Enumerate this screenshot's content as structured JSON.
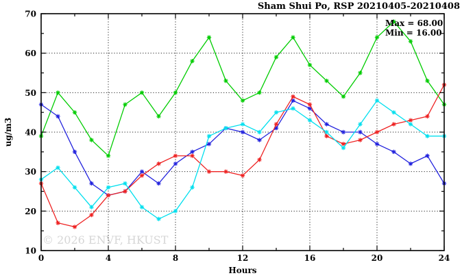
{
  "title": "Sham Shui Po, RSP 20210405-20210408",
  "annotations": {
    "max_label": "Max = 68.00",
    "min_label": "Min = 16.00"
  },
  "watermark": "© 2026 ENVF, HKUST",
  "colors": {
    "green": "#00cc00",
    "blue": "#2222dd",
    "red": "#ee2222",
    "cyan": "#00dfee",
    "grid": "#222222",
    "border": "#000000"
  },
  "chart_data": {
    "type": "line",
    "title": "Sham Shui Po, RSP 20210405-20210408",
    "xlabel": "Hours",
    "ylabel": "ug/m3",
    "xlim": [
      0,
      24
    ],
    "ylim": [
      10,
      70
    ],
    "x_major_ticks": [
      0,
      4,
      8,
      12,
      16,
      20,
      24
    ],
    "y_major_ticks": [
      10,
      20,
      30,
      40,
      50,
      60,
      70
    ],
    "x_minor_step": 2,
    "y_minor_step": 5,
    "grid": true,
    "legend": "none",
    "max": 68.0,
    "min": 16.0,
    "x": [
      0,
      1,
      2,
      3,
      4,
      5,
      6,
      7,
      8,
      9,
      10,
      11,
      12,
      13,
      14,
      15,
      16,
      17,
      18,
      19,
      20,
      21,
      22,
      23,
      24
    ],
    "series": [
      {
        "name": "green",
        "color": "#00cc00",
        "values": [
          39,
          50,
          45,
          38,
          34,
          47,
          50,
          44,
          50,
          58,
          64,
          53,
          48,
          50,
          59,
          64,
          57,
          53,
          49,
          55,
          64,
          68,
          63,
          53,
          47
        ]
      },
      {
        "name": "blue",
        "color": "#2222dd",
        "values": [
          47,
          44,
          35,
          27,
          24,
          25,
          30,
          27,
          32,
          35,
          37,
          41,
          40,
          38,
          41,
          48,
          46,
          42,
          40,
          40,
          37,
          35,
          32,
          34,
          27
        ]
      },
      {
        "name": "red",
        "color": "#ee2222",
        "values": [
          27,
          17,
          16,
          19,
          24,
          25,
          29,
          32,
          34,
          34,
          30,
          30,
          29,
          33,
          42,
          49,
          47,
          39,
          37,
          38,
          40,
          42,
          43,
          44,
          52
        ]
      },
      {
        "name": "cyan",
        "color": "#00dfee",
        "values": [
          28,
          31,
          26,
          21,
          26,
          27,
          21,
          18,
          20,
          26,
          39,
          41,
          42,
          40,
          45,
          46,
          43,
          40,
          36,
          42,
          48,
          45,
          42,
          39,
          39
        ]
      }
    ]
  }
}
